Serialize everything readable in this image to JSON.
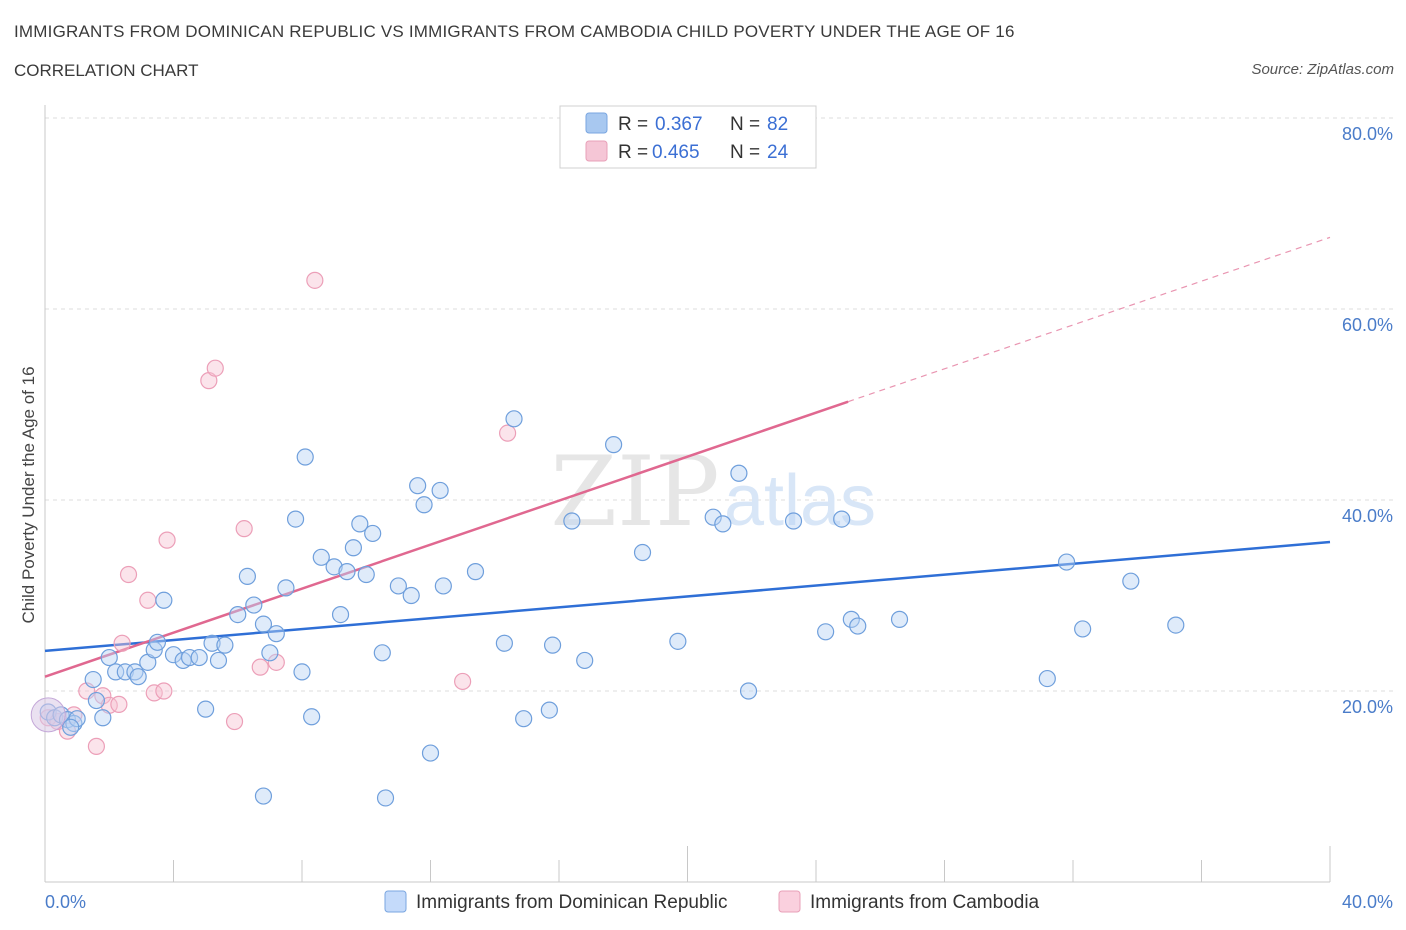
{
  "header": {
    "title": "IMMIGRANTS FROM DOMINICAN REPUBLIC VS IMMIGRANTS FROM CAMBODIA CHILD POVERTY UNDER THE AGE OF 16",
    "subtitle": "CORRELATION CHART",
    "source": "Source: ZipAtlas.com"
  },
  "watermark": {
    "zip": "ZIP",
    "atlas": "atlas"
  },
  "legend": {
    "rows": [
      {
        "r_label": "R =",
        "r_value": "0.367",
        "n_label": "N =",
        "n_value": "82",
        "color": "#a8c8f0"
      },
      {
        "r_label": "R =",
        "r_value": "0.465",
        "n_label": "N =",
        "n_value": "24",
        "color": "#f5b8cc"
      }
    ]
  },
  "chart_data": {
    "type": "scatter",
    "title": "IMMIGRANTS FROM DOMINICAN REPUBLIC VS IMMIGRANTS FROM CAMBODIA CHILD POVERTY UNDER THE AGE OF 16",
    "ylabel": "Child Poverty Under the Age of 16",
    "xlim": [
      0,
      40
    ],
    "ylim": [
      0,
      80
    ],
    "x_tick_labels": [
      "0.0%",
      "40.0%"
    ],
    "y_tick_labels": [
      "20.0%",
      "40.0%",
      "60.0%",
      "80.0%"
    ],
    "y_tick_values": [
      20,
      40,
      60,
      80
    ],
    "grid": true,
    "series": [
      {
        "name": "Immigrants from Dominican Republic",
        "color": "#6fa0e0",
        "trend_color": "#2f6fd6",
        "trend": {
          "x": [
            0,
            40
          ],
          "y": [
            24.2,
            35.6
          ]
        },
        "points": [
          [
            0.1,
            17.8
          ],
          [
            0.3,
            17.2
          ],
          [
            0.5,
            17.5
          ],
          [
            0.7,
            17.0
          ],
          [
            0.9,
            16.6
          ],
          [
            1.0,
            17.1
          ],
          [
            1.5,
            21.2
          ],
          [
            1.6,
            19.0
          ],
          [
            2.0,
            23.5
          ],
          [
            2.2,
            22.0
          ],
          [
            2.5,
            22.0
          ],
          [
            2.8,
            22.0
          ],
          [
            3.2,
            23.0
          ],
          [
            3.4,
            24.3
          ],
          [
            3.5,
            25.1
          ],
          [
            3.7,
            29.5
          ],
          [
            4.0,
            23.8
          ],
          [
            4.3,
            23.2
          ],
          [
            4.5,
            23.5
          ],
          [
            4.8,
            23.5
          ],
          [
            5.0,
            18.1
          ],
          [
            5.2,
            25.0
          ],
          [
            5.4,
            23.2
          ],
          [
            5.6,
            24.8
          ],
          [
            6.0,
            28.0
          ],
          [
            6.3,
            32.0
          ],
          [
            6.5,
            29.0
          ],
          [
            6.8,
            27.0
          ],
          [
            7.0,
            24.0
          ],
          [
            7.2,
            26.0
          ],
          [
            7.5,
            30.8
          ],
          [
            7.8,
            38.0
          ],
          [
            8.0,
            22.0
          ],
          [
            8.1,
            44.5
          ],
          [
            8.3,
            17.3
          ],
          [
            8.6,
            34.0
          ],
          [
            9.0,
            33.0
          ],
          [
            9.2,
            28.0
          ],
          [
            9.4,
            32.5
          ],
          [
            9.6,
            35.0
          ],
          [
            9.8,
            37.5
          ],
          [
            10.0,
            32.2
          ],
          [
            10.2,
            36.5
          ],
          [
            10.5,
            24.0
          ],
          [
            11.0,
            31.0
          ],
          [
            11.4,
            30.0
          ],
          [
            11.6,
            41.5
          ],
          [
            11.8,
            39.5
          ],
          [
            12.3,
            41.0
          ],
          [
            12.4,
            31.0
          ],
          [
            13.4,
            32.5
          ],
          [
            14.3,
            25.0
          ],
          [
            14.6,
            48.5
          ],
          [
            14.9,
            17.1
          ],
          [
            15.7,
            18.0
          ],
          [
            15.8,
            24.8
          ],
          [
            16.4,
            37.8
          ],
          [
            16.8,
            23.2
          ],
          [
            17.7,
            45.8
          ],
          [
            18.6,
            34.5
          ],
          [
            19.7,
            25.2
          ],
          [
            20.8,
            38.2
          ],
          [
            21.1,
            37.5
          ],
          [
            21.6,
            42.8
          ],
          [
            21.9,
            20.0
          ],
          [
            23.3,
            37.8
          ],
          [
            24.3,
            26.2
          ],
          [
            24.8,
            38.0
          ],
          [
            25.1,
            27.5
          ],
          [
            25.3,
            26.8
          ],
          [
            26.6,
            27.5
          ],
          [
            31.2,
            21.3
          ],
          [
            31.8,
            33.5
          ],
          [
            32.3,
            26.5
          ],
          [
            33.8,
            31.5
          ],
          [
            35.2,
            26.9
          ],
          [
            1.8,
            17.2
          ],
          [
            0.8,
            16.2
          ],
          [
            2.9,
            21.5
          ],
          [
            6.8,
            9.0
          ],
          [
            10.6,
            8.8
          ],
          [
            12.0,
            13.5
          ]
        ]
      },
      {
        "name": "Immigrants from Cambodia",
        "color": "#f0a0b8",
        "trend_color": "#e06890",
        "trend": {
          "x": [
            0,
            25
          ],
          "y": [
            21.5,
            50.3
          ]
        },
        "trend_dashed": {
          "x": [
            25,
            40
          ],
          "y": [
            50.3,
            67.5
          ]
        },
        "points": [
          [
            0.1,
            17.2
          ],
          [
            0.4,
            16.8
          ],
          [
            0.7,
            15.8
          ],
          [
            1.3,
            20.0
          ],
          [
            1.6,
            14.2
          ],
          [
            1.8,
            19.5
          ],
          [
            2.0,
            18.5
          ],
          [
            2.4,
            25.0
          ],
          [
            2.6,
            32.2
          ],
          [
            3.2,
            29.5
          ],
          [
            3.4,
            19.8
          ],
          [
            3.7,
            20.0
          ],
          [
            3.8,
            35.8
          ],
          [
            5.1,
            52.5
          ],
          [
            5.3,
            53.8
          ],
          [
            5.9,
            16.8
          ],
          [
            6.2,
            37.0
          ],
          [
            6.7,
            22.5
          ],
          [
            7.2,
            23.0
          ],
          [
            8.4,
            63.0
          ],
          [
            13.0,
            21.0
          ],
          [
            14.4,
            47.0
          ],
          [
            0.9,
            17.5
          ],
          [
            2.3,
            18.6
          ]
        ]
      }
    ],
    "legend_position": "top-center"
  },
  "bottom_legend": [
    {
      "label": "Immigrants from Dominican Republic",
      "color": "#a8c8f0"
    },
    {
      "label": "Immigrants from Cambodia",
      "color": "#f5b8cc"
    }
  ]
}
